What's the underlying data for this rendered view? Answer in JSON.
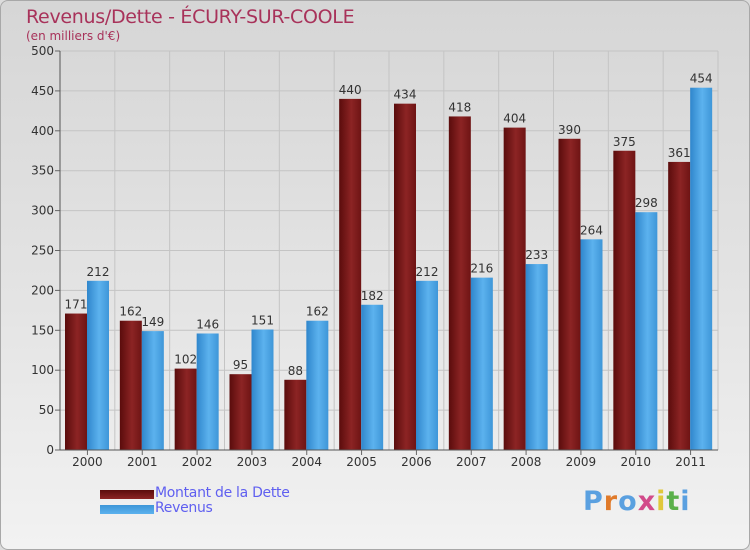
{
  "chart_data": {
    "type": "bar",
    "title": "Revenus/Dette - ÉCURY-SUR-COOLE",
    "subtitle": "(en milliers d'€)",
    "categories": [
      "2000",
      "2001",
      "2002",
      "2003",
      "2004",
      "2005",
      "2006",
      "2007",
      "2008",
      "2009",
      "2010",
      "2011"
    ],
    "series": [
      {
        "name": "Montant de la Dette",
        "color": "#7a1a1a",
        "values": [
          171,
          162,
          102,
          95,
          88,
          440,
          434,
          418,
          404,
          390,
          375,
          361
        ]
      },
      {
        "name": "Revenus",
        "color": "#4aa3e4",
        "values": [
          212,
          149,
          146,
          151,
          162,
          182,
          212,
          216,
          233,
          264,
          298,
          454
        ]
      }
    ],
    "ylim": [
      0,
      500
    ],
    "yticks": [
      0,
      50,
      100,
      150,
      200,
      250,
      300,
      350,
      400,
      450,
      500
    ],
    "grid": true,
    "legend": "bottom-left"
  },
  "branding": {
    "logo_letters": [
      "P",
      "r",
      "o",
      "x",
      "i",
      "t",
      "i"
    ],
    "logo_colors": [
      "#5aa0e0",
      "#e07a2a",
      "#5aa0e0",
      "#d24a8a",
      "#e0c83a",
      "#5ab04a",
      "#5aa0e0"
    ]
  }
}
